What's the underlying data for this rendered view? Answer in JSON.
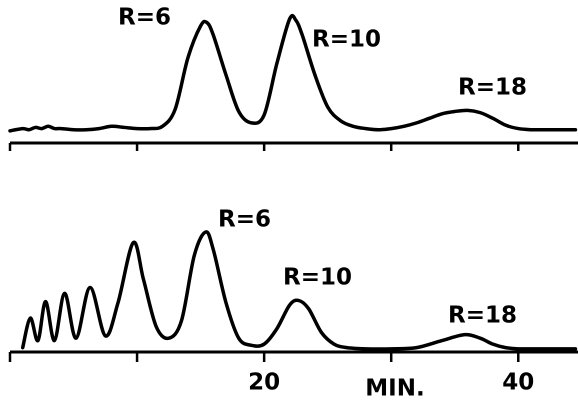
{
  "chart_data": [
    {
      "type": "line",
      "x": [
        0,
        1,
        1.5,
        2,
        2.5,
        3,
        3.5,
        4,
        5,
        6,
        7,
        8,
        9,
        10,
        11,
        12,
        13,
        14,
        15,
        15.5,
        16,
        17,
        18,
        19,
        20,
        21,
        22,
        22.5,
        23,
        24,
        25,
        26,
        27,
        28,
        29,
        30,
        31,
        32,
        33,
        34,
        35,
        36,
        37,
        38,
        39,
        40,
        41,
        42,
        43,
        44,
        44.5
      ],
      "series": [
        {
          "color": "#000000",
          "values": [
            1,
            3,
            2,
            4,
            3,
            5,
            3,
            3,
            2,
            2,
            3,
            5,
            4,
            3,
            3,
            5,
            20,
            65,
            93,
            96,
            85,
            50,
            18,
            8,
            15,
            60,
            99,
            98,
            85,
            50,
            22,
            10,
            5,
            3,
            2,
            3,
            5,
            8,
            12,
            16,
            18,
            19,
            17,
            12,
            6,
            3,
            2,
            2,
            2,
            2,
            2
          ]
        }
      ],
      "xlim": [
        0,
        44.7
      ],
      "ylim": [
        0,
        100
      ],
      "minor_xticks": [
        0,
        10,
        20,
        30,
        40
      ],
      "annotations": [
        "R=6",
        "R=10",
        "R=18"
      ]
    },
    {
      "type": "line",
      "x": [
        1,
        1.6,
        2.2,
        2.8,
        3.5,
        4.3,
        5.2,
        6.3,
        7.5,
        8.5,
        9.7,
        10.5,
        11.5,
        12.5,
        13.5,
        14.5,
        15.4,
        16,
        17,
        18,
        19,
        20,
        21,
        22,
        22.7,
        23.5,
        24.5,
        25.5,
        26.5,
        28,
        30,
        32,
        34,
        35.8,
        37,
        38,
        39,
        40,
        42,
        44.5
      ],
      "series": [
        {
          "color": "#000000",
          "values": [
            2,
            27,
            8,
            41,
            8,
            48,
            10,
            53,
            12,
            40,
            91,
            60,
            20,
            10,
            25,
            80,
            100,
            85,
            40,
            10,
            4,
            5,
            18,
            38,
            42,
            35,
            15,
            5,
            2,
            1,
            1,
            2,
            8,
            13,
            10,
            5,
            2,
            1,
            1,
            1
          ]
        }
      ],
      "xlim": [
        0,
        44.7
      ],
      "ylim": [
        0,
        100
      ],
      "xticks": [
        20,
        40
      ],
      "minor_xticks": [
        0,
        10,
        30
      ],
      "xlabel": "MIN.",
      "annotations": [
        "R=6",
        "R=10",
        "R=18"
      ]
    }
  ]
}
